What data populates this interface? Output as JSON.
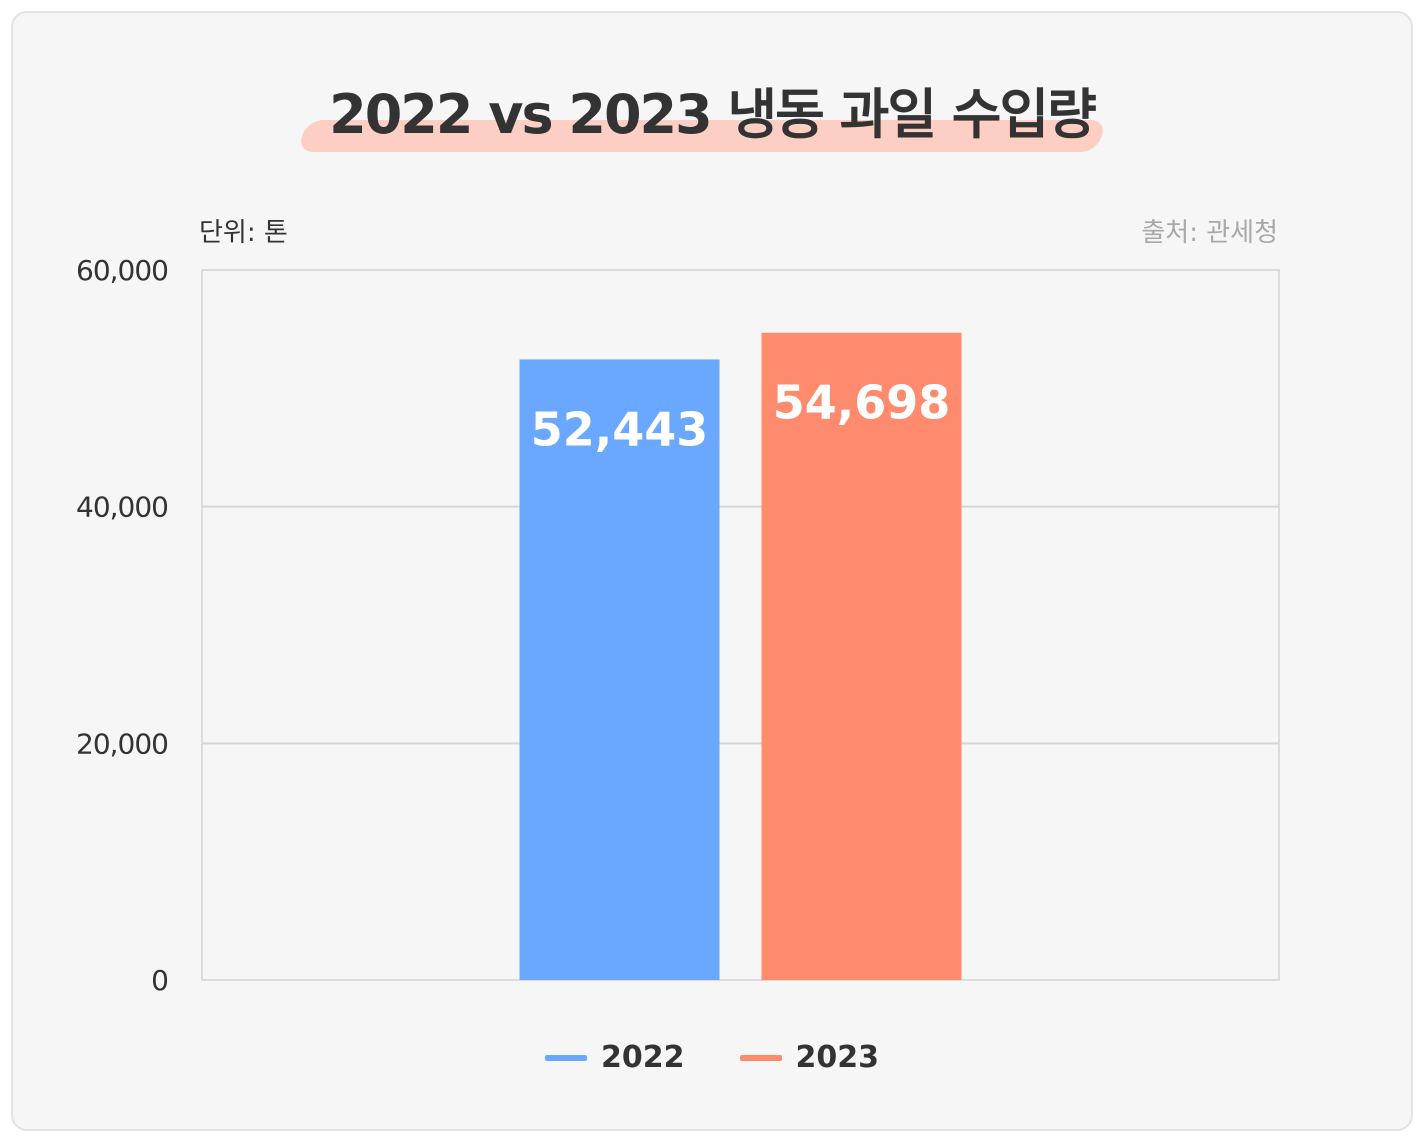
{
  "title": "2022 vs 2023 냉동 과일 수입량",
  "unit_label": "단위: 톤",
  "source_label": "출처: 관세청",
  "colors": {
    "series_2022": "#6aa8ff",
    "series_2023": "#ff8b6e",
    "highlight": "#fdcfc4"
  },
  "chart_data": {
    "type": "bar",
    "title": "2022 vs 2023 냉동 과일 수입량",
    "xlabel": "",
    "ylabel": "",
    "ylim": [
      0,
      60000
    ],
    "yticks": [
      0,
      20000,
      40000,
      60000
    ],
    "ytick_labels": [
      "0",
      "20,000",
      "40,000",
      "60,000"
    ],
    "grid": true,
    "legend_position": "bottom",
    "series": [
      {
        "name": "2022",
        "values": [
          52443
        ],
        "label": "52,443"
      },
      {
        "name": "2023",
        "values": [
          54698
        ],
        "label": "54,698"
      }
    ]
  }
}
